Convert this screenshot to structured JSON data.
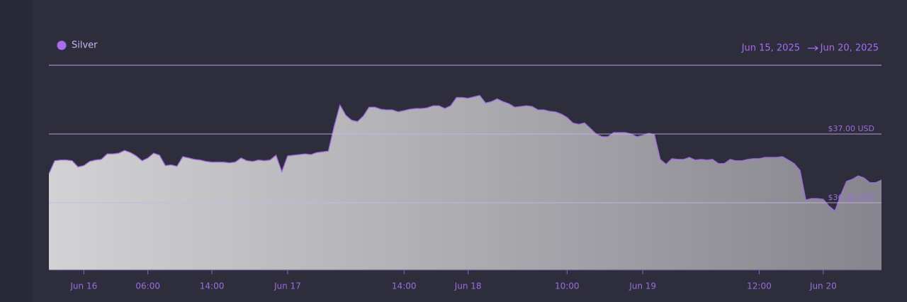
{
  "chart_data": {
    "type": "area",
    "date_range": {
      "start": "Jun 15, 2025",
      "end": "Jun 20, 2025"
    },
    "categories": [
      null,
      null,
      null,
      null,
      null,
      null,
      "Jun 16",
      null,
      null,
      null,
      null,
      null,
      null,
      null,
      null,
      null,
      null,
      "06:00",
      null,
      null,
      null,
      null,
      null,
      null,
      null,
      null,
      null,
      null,
      "14:00",
      null,
      null,
      null,
      null,
      null,
      null,
      null,
      null,
      null,
      null,
      null,
      null,
      "Jun 17",
      null,
      null,
      null,
      null,
      null,
      null,
      null,
      null,
      null,
      null,
      null,
      null,
      null,
      null,
      null,
      null,
      null,
      null,
      null,
      "14:00",
      null,
      null,
      null,
      null,
      null,
      null,
      null,
      null,
      null,
      null,
      "Jun 18",
      null,
      null,
      null,
      null,
      null,
      null,
      null,
      null,
      null,
      null,
      null,
      null,
      null,
      null,
      null,
      null,
      "10:00",
      null,
      null,
      null,
      null,
      null,
      null,
      null,
      null,
      null,
      null,
      null,
      null,
      "Jun 19",
      null,
      null,
      null,
      null,
      null,
      null,
      null,
      null,
      null,
      null,
      null,
      null,
      null,
      null,
      null,
      null,
      null,
      null,
      null,
      "12:00",
      null,
      null,
      null,
      null,
      null,
      null,
      null,
      null,
      null,
      null,
      "Jun 20",
      null,
      null,
      null,
      null,
      null,
      null,
      null,
      null,
      null,
      null
    ],
    "series": [
      {
        "name": "Silver",
        "color": "#a66cf0",
        "values": [
          36.42,
          36.61,
          36.62,
          36.62,
          36.61,
          36.52,
          36.54,
          36.6,
          36.62,
          36.63,
          36.71,
          36.71,
          36.72,
          36.76,
          36.73,
          36.68,
          36.61,
          36.65,
          36.72,
          36.69,
          36.54,
          36.55,
          36.53,
          36.67,
          36.65,
          36.63,
          36.62,
          36.6,
          36.59,
          36.59,
          36.59,
          36.58,
          36.59,
          36.65,
          36.61,
          36.6,
          36.62,
          36.61,
          36.62,
          36.69,
          36.45,
          36.68,
          36.69,
          36.7,
          36.71,
          36.7,
          36.73,
          36.74,
          36.75,
          37.11,
          37.42,
          37.27,
          37.2,
          37.18,
          37.26,
          37.39,
          37.39,
          37.36,
          37.35,
          37.35,
          37.32,
          37.34,
          37.36,
          37.37,
          37.37,
          37.38,
          37.41,
          37.41,
          37.37,
          37.41,
          37.53,
          37.53,
          37.52,
          37.54,
          37.56,
          37.45,
          37.47,
          37.51,
          37.47,
          37.44,
          37.39,
          37.4,
          37.41,
          37.4,
          37.35,
          37.35,
          37.33,
          37.32,
          37.29,
          37.24,
          37.16,
          37.14,
          37.16,
          37.08,
          37.0,
          36.96,
          36.96,
          37.02,
          37.02,
          37.02,
          37.0,
          36.96,
          36.98,
          37.01,
          36.99,
          36.63,
          36.56,
          36.64,
          36.63,
          36.63,
          36.66,
          36.62,
          36.63,
          36.62,
          36.63,
          36.57,
          36.57,
          36.63,
          36.61,
          36.61,
          36.63,
          36.64,
          36.64,
          36.66,
          36.66,
          36.66,
          36.67,
          36.62,
          36.57,
          36.47,
          36.04,
          36.06,
          36.06,
          36.05,
          35.95,
          35.88,
          36.11,
          36.31,
          36.34,
          36.39,
          36.36,
          36.29,
          36.29,
          36.33
        ]
      }
    ],
    "ylim": [
      35.02,
      38.0
    ],
    "yticks": [
      {
        "value": 37,
        "label": "$37.00 USD"
      },
      {
        "value": 36,
        "label": "$36.00 USD"
      }
    ],
    "grid": true
  }
}
